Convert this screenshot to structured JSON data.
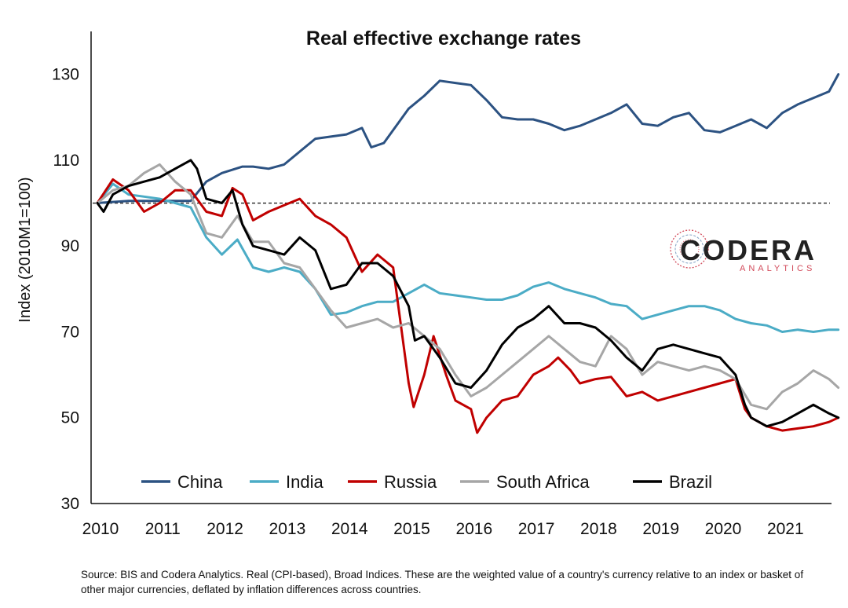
{
  "chart_data": {
    "type": "line",
    "title": "Real effective exchange rates",
    "ylabel": "Index (2010M1=100)",
    "xlabel": "",
    "xlim": [
      2010,
      2021.9
    ],
    "ylim": [
      30,
      140
    ],
    "x_ticks": [
      "2010",
      "2011",
      "2012",
      "2013",
      "2014",
      "2015",
      "2016",
      "2017",
      "2018",
      "2019",
      "2020",
      "2021"
    ],
    "y_ticks": [
      "30",
      "50",
      "70",
      "90",
      "110",
      "130"
    ],
    "reference_line": 100,
    "legend_position": "bottom",
    "series": [
      {
        "name": "China",
        "color": "#2c5282",
        "points": [
          [
            2010,
            100
          ],
          [
            2010.5,
            100.5
          ],
          [
            2011,
            100.5
          ],
          [
            2011.5,
            100.5
          ],
          [
            2011.75,
            105
          ],
          [
            2012,
            107
          ],
          [
            2012.33,
            108.5
          ],
          [
            2012.5,
            108.5
          ],
          [
            2012.75,
            108
          ],
          [
            2013,
            109
          ],
          [
            2013.25,
            112
          ],
          [
            2013.5,
            115
          ],
          [
            2013.75,
            115.5
          ],
          [
            2014,
            116
          ],
          [
            2014.25,
            117.5
          ],
          [
            2014.4,
            113
          ],
          [
            2014.6,
            114
          ],
          [
            2014.8,
            118
          ],
          [
            2015,
            122
          ],
          [
            2015.25,
            125
          ],
          [
            2015.5,
            128.5
          ],
          [
            2015.75,
            128
          ],
          [
            2016,
            127.5
          ],
          [
            2016.25,
            124
          ],
          [
            2016.5,
            120
          ],
          [
            2016.75,
            119.5
          ],
          [
            2017,
            119.5
          ],
          [
            2017.25,
            118.5
          ],
          [
            2017.5,
            117
          ],
          [
            2017.75,
            118
          ],
          [
            2018,
            119.5
          ],
          [
            2018.25,
            121
          ],
          [
            2018.5,
            123
          ],
          [
            2018.75,
            118.5
          ],
          [
            2019,
            118
          ],
          [
            2019.25,
            120
          ],
          [
            2019.5,
            121
          ],
          [
            2019.75,
            117
          ],
          [
            2020,
            116.5
          ],
          [
            2020.25,
            118
          ],
          [
            2020.5,
            119.5
          ],
          [
            2020.75,
            117.5
          ],
          [
            2021,
            121
          ],
          [
            2021.25,
            123
          ],
          [
            2021.5,
            124.5
          ],
          [
            2021.75,
            126
          ],
          [
            2021.9,
            130
          ]
        ]
      },
      {
        "name": "India",
        "color": "#4bacc6",
        "points": [
          [
            2010,
            100
          ],
          [
            2010.25,
            104.5
          ],
          [
            2010.5,
            102
          ],
          [
            2010.75,
            101.5
          ],
          [
            2011,
            101
          ],
          [
            2011.25,
            100
          ],
          [
            2011.5,
            99
          ],
          [
            2011.75,
            92
          ],
          [
            2012,
            88
          ],
          [
            2012.25,
            91.5
          ],
          [
            2012.5,
            85
          ],
          [
            2012.75,
            84
          ],
          [
            2013,
            85
          ],
          [
            2013.25,
            84
          ],
          [
            2013.5,
            80
          ],
          [
            2013.75,
            74
          ],
          [
            2014,
            74.5
          ],
          [
            2014.25,
            76
          ],
          [
            2014.5,
            77
          ],
          [
            2014.75,
            77
          ],
          [
            2015,
            79
          ],
          [
            2015.25,
            81
          ],
          [
            2015.5,
            79
          ],
          [
            2015.75,
            78.5
          ],
          [
            2016,
            78
          ],
          [
            2016.25,
            77.5
          ],
          [
            2016.5,
            77.5
          ],
          [
            2016.75,
            78.5
          ],
          [
            2017,
            80.5
          ],
          [
            2017.25,
            81.5
          ],
          [
            2017.5,
            80
          ],
          [
            2017.75,
            79
          ],
          [
            2018,
            78
          ],
          [
            2018.25,
            76.5
          ],
          [
            2018.5,
            76
          ],
          [
            2018.75,
            73
          ],
          [
            2019,
            74
          ],
          [
            2019.25,
            75
          ],
          [
            2019.5,
            76
          ],
          [
            2019.75,
            76
          ],
          [
            2020,
            75
          ],
          [
            2020.25,
            73
          ],
          [
            2020.5,
            72
          ],
          [
            2020.75,
            71.5
          ],
          [
            2021,
            70
          ],
          [
            2021.25,
            70.5
          ],
          [
            2021.5,
            70
          ],
          [
            2021.75,
            70.5
          ],
          [
            2021.9,
            70.5
          ]
        ]
      },
      {
        "name": "Russia",
        "color": "#c00000",
        "points": [
          [
            2010,
            100
          ],
          [
            2010.25,
            105.5
          ],
          [
            2010.5,
            103
          ],
          [
            2010.75,
            98
          ],
          [
            2011,
            100
          ],
          [
            2011.25,
            103
          ],
          [
            2011.5,
            103
          ],
          [
            2011.75,
            98
          ],
          [
            2012,
            97
          ],
          [
            2012.17,
            103.5
          ],
          [
            2012.33,
            102
          ],
          [
            2012.5,
            96
          ],
          [
            2012.75,
            98
          ],
          [
            2013,
            99.5
          ],
          [
            2013.25,
            101
          ],
          [
            2013.5,
            97
          ],
          [
            2013.75,
            95
          ],
          [
            2014,
            92
          ],
          [
            2014.25,
            84
          ],
          [
            2014.5,
            88
          ],
          [
            2014.75,
            85
          ],
          [
            2015,
            58
          ],
          [
            2015.08,
            52.5
          ],
          [
            2015.25,
            60
          ],
          [
            2015.4,
            69
          ],
          [
            2015.6,
            60
          ],
          [
            2015.75,
            54
          ],
          [
            2016,
            52
          ],
          [
            2016.1,
            46.5
          ],
          [
            2016.25,
            50
          ],
          [
            2016.5,
            54
          ],
          [
            2016.75,
            55
          ],
          [
            2017,
            60
          ],
          [
            2017.25,
            62
          ],
          [
            2017.4,
            64
          ],
          [
            2017.6,
            61
          ],
          [
            2017.75,
            58
          ],
          [
            2018,
            59
          ],
          [
            2018.25,
            59.5
          ],
          [
            2018.5,
            55
          ],
          [
            2018.75,
            56
          ],
          [
            2019,
            54
          ],
          [
            2019.25,
            55
          ],
          [
            2019.5,
            56
          ],
          [
            2019.75,
            57
          ],
          [
            2020,
            58
          ],
          [
            2020.25,
            59
          ],
          [
            2020.4,
            52
          ],
          [
            2020.5,
            50
          ],
          [
            2020.75,
            48
          ],
          [
            2021,
            47
          ],
          [
            2021.25,
            47.5
          ],
          [
            2021.5,
            48
          ],
          [
            2021.75,
            49
          ],
          [
            2021.9,
            50
          ]
        ]
      },
      {
        "name": "South Africa",
        "color": "#a6a6a6",
        "points": [
          [
            2010,
            100
          ],
          [
            2010.25,
            103
          ],
          [
            2010.5,
            104
          ],
          [
            2010.75,
            107
          ],
          [
            2011,
            109
          ],
          [
            2011.25,
            105
          ],
          [
            2011.5,
            102
          ],
          [
            2011.75,
            93
          ],
          [
            2012,
            92
          ],
          [
            2012.25,
            97
          ],
          [
            2012.5,
            91
          ],
          [
            2012.75,
            91
          ],
          [
            2013,
            86
          ],
          [
            2013.25,
            85
          ],
          [
            2013.5,
            80
          ],
          [
            2013.75,
            75
          ],
          [
            2014,
            71
          ],
          [
            2014.25,
            72
          ],
          [
            2014.5,
            73
          ],
          [
            2014.75,
            71
          ],
          [
            2015,
            72
          ],
          [
            2015.25,
            69
          ],
          [
            2015.5,
            66
          ],
          [
            2015.75,
            60
          ],
          [
            2016,
            55
          ],
          [
            2016.25,
            57
          ],
          [
            2016.5,
            60
          ],
          [
            2016.75,
            63
          ],
          [
            2017,
            66
          ],
          [
            2017.25,
            69
          ],
          [
            2017.5,
            66
          ],
          [
            2017.75,
            63
          ],
          [
            2018,
            62
          ],
          [
            2018.25,
            69
          ],
          [
            2018.5,
            66
          ],
          [
            2018.75,
            60
          ],
          [
            2019,
            63
          ],
          [
            2019.25,
            62
          ],
          [
            2019.5,
            61
          ],
          [
            2019.75,
            62
          ],
          [
            2020,
            61
          ],
          [
            2020.25,
            59
          ],
          [
            2020.5,
            53
          ],
          [
            2020.75,
            52
          ],
          [
            2021,
            56
          ],
          [
            2021.25,
            58
          ],
          [
            2021.5,
            61
          ],
          [
            2021.75,
            59
          ],
          [
            2021.9,
            57
          ]
        ]
      },
      {
        "name": "Brazil",
        "color": "#000000",
        "points": [
          [
            2010,
            100
          ],
          [
            2010.1,
            98
          ],
          [
            2010.25,
            102
          ],
          [
            2010.5,
            104
          ],
          [
            2010.75,
            105
          ],
          [
            2011,
            106
          ],
          [
            2011.25,
            108
          ],
          [
            2011.5,
            110
          ],
          [
            2011.6,
            108
          ],
          [
            2011.75,
            101
          ],
          [
            2012,
            100
          ],
          [
            2012.17,
            103
          ],
          [
            2012.33,
            95
          ],
          [
            2012.5,
            90
          ],
          [
            2012.75,
            89
          ],
          [
            2013,
            88
          ],
          [
            2013.25,
            92
          ],
          [
            2013.5,
            89
          ],
          [
            2013.75,
            80
          ],
          [
            2014,
            81
          ],
          [
            2014.25,
            86
          ],
          [
            2014.5,
            86
          ],
          [
            2014.75,
            83
          ],
          [
            2015,
            76
          ],
          [
            2015.1,
            68
          ],
          [
            2015.25,
            69
          ],
          [
            2015.5,
            64
          ],
          [
            2015.75,
            58
          ],
          [
            2016,
            57
          ],
          [
            2016.25,
            61
          ],
          [
            2016.5,
            67
          ],
          [
            2016.75,
            71
          ],
          [
            2017,
            73
          ],
          [
            2017.25,
            76
          ],
          [
            2017.5,
            72
          ],
          [
            2017.75,
            72
          ],
          [
            2018,
            71
          ],
          [
            2018.25,
            68
          ],
          [
            2018.5,
            64
          ],
          [
            2018.75,
            61
          ],
          [
            2019,
            66
          ],
          [
            2019.25,
            67
          ],
          [
            2019.5,
            66
          ],
          [
            2019.75,
            65
          ],
          [
            2020,
            64
          ],
          [
            2020.25,
            60
          ],
          [
            2020.4,
            53
          ],
          [
            2020.5,
            50
          ],
          [
            2020.75,
            48
          ],
          [
            2021,
            49
          ],
          [
            2021.25,
            51
          ],
          [
            2021.5,
            53
          ],
          [
            2021.75,
            51
          ],
          [
            2021.9,
            50
          ]
        ]
      }
    ]
  },
  "logo": {
    "name": "CODERA",
    "sub": "ANALYTICS"
  },
  "source_text": "Source: BIS and Codera Analytics. Real (CPI-based), Broad Indices. These are the weighted value of a country's currency relative to an index or basket of other major currencies, deflated by inflation differences across countries."
}
